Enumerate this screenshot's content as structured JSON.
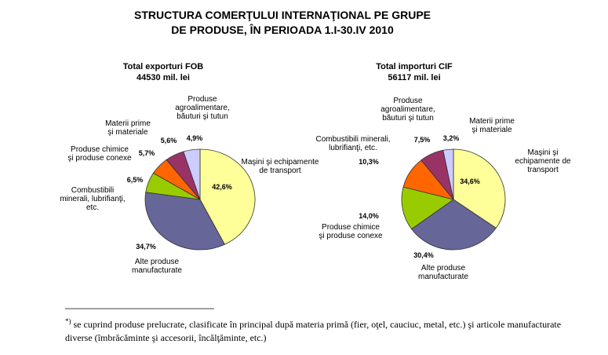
{
  "title": "STRUCTURA COMERŢULUI INTERNAŢIONAL PE GRUPE\nDE PRODUSE, ÎN PERIOADA 1.I-30.IV 2010",
  "chart_data": [
    {
      "type": "pie",
      "title": "Total exporturi FOB",
      "subtitle": "44530 mil. lei",
      "categories": [
        "Maşini şi echipamente\nde transport",
        "Alte produse\nmanufacturate",
        "Combustibili\nminerali, lubrifianţi,\netc.",
        "Produse chimice\nşi produse conexe",
        "Materii prime\nşi materiale",
        "Produse\nagroalimentare,\nbăuturi şi tutun"
      ],
      "values": [
        42.6,
        34.7,
        6.5,
        5.7,
        5.6,
        4.9
      ],
      "value_labels": [
        "42,6%",
        "34,7%",
        "6,5%",
        "5,7%",
        "5,6%",
        "4,9%"
      ],
      "colors": [
        "#ffff99",
        "#666699",
        "#99cc00",
        "#ff6600",
        "#993366",
        "#ccccff"
      ]
    },
    {
      "type": "pie",
      "title": "Total importuri  CIF",
      "subtitle": "56117 mil. lei",
      "categories": [
        "Maşini şi\nechipamente de\ntransport",
        "Alte produse\nmanufacturate",
        "Produse chimice\nşi produse conexe",
        "Combustibili minerali,\nlubrifianţi, etc.",
        "Produse\nagroalimentare,\nbăuturi şi tutun",
        "Materii prime\nşi materiale"
      ],
      "values": [
        34.6,
        30.4,
        14.0,
        10.3,
        7.5,
        3.2
      ],
      "value_labels": [
        "34,6%",
        "30,4%",
        "14,0%",
        "10,3%",
        "7,5%",
        "3,2%"
      ],
      "colors": [
        "#ffff99",
        "#666699",
        "#99cc00",
        "#ff6600",
        "#993366",
        "#ccccff"
      ]
    }
  ],
  "footnote_marker": "*)",
  "footnote": "se cuprind produse prelucrate, clasificate în principal după materia primă (fier, oţel, cauciuc, metal, etc.) şi articole manufacturate diverse (îmbrăcăminte şi accesorii, încălţăminte, etc.)"
}
